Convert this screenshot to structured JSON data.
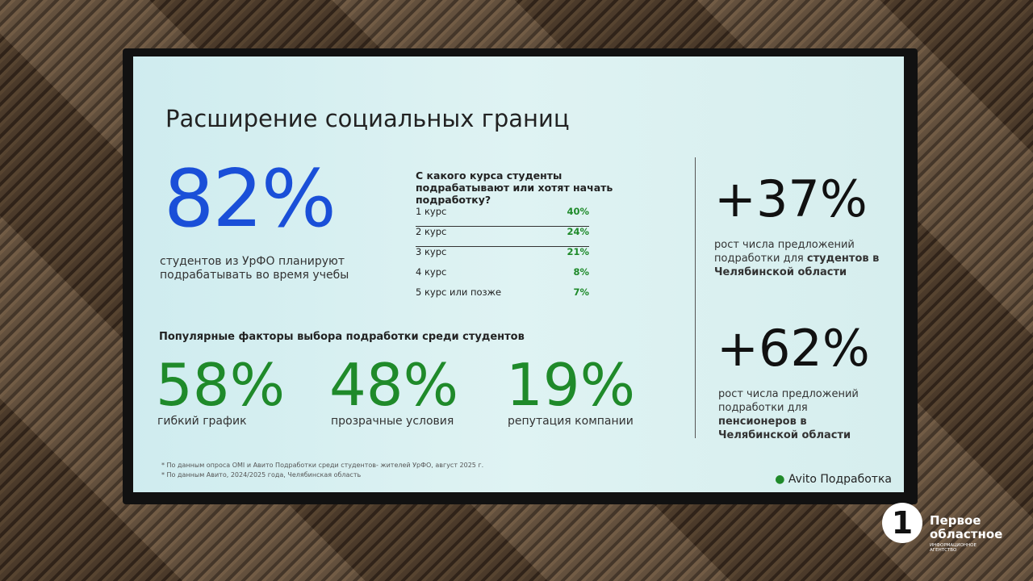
{
  "slide": {
    "title": "Расширение социальных границ",
    "hero": {
      "value": "82%",
      "caption": "студентов из УрФО планируют подрабатывать во время учебы"
    },
    "survey": {
      "question": "С какого курса студенты подрабатывают или хотят начать подработку?",
      "rows": [
        [
          "1 курс",
          "40%"
        ],
        [
          "2 курс",
          "24%"
        ],
        [
          "3 курс",
          "21%"
        ],
        [
          "4 курс",
          "8%"
        ],
        [
          "5 курс или позже",
          "7%"
        ]
      ]
    },
    "factors": {
      "title": "Популярные факторы выбора подработки среди студентов",
      "items": [
        {
          "value": "58%",
          "label": "гибкий график"
        },
        {
          "value": "48%",
          "label": "прозрачные условия"
        },
        {
          "value": "19%",
          "label": "репутация компании"
        }
      ]
    },
    "stats": [
      {
        "value": "+37%",
        "text": "рост числа предложений подработки для",
        "bold": "студентов в Челябинской области"
      },
      {
        "value": "+62%",
        "text": "рост числа предложений подработки для",
        "bold": "пенсионеров в Челябинской области"
      }
    ],
    "footnotes": [
      "* По данным опроса OMI и Авито Подработки среди студентов- жителей УрФО, август 2025 г.",
      "* По данным Авито, 2024/2025 года, Челябинская область"
    ],
    "brand": {
      "name": "Avito",
      "product": "Подработка"
    }
  },
  "watermark": {
    "digit": "1",
    "name": "Первое областное",
    "subtitle": "ИНФОРМАЦИОННОЕ АГЕНТСТВО"
  }
}
